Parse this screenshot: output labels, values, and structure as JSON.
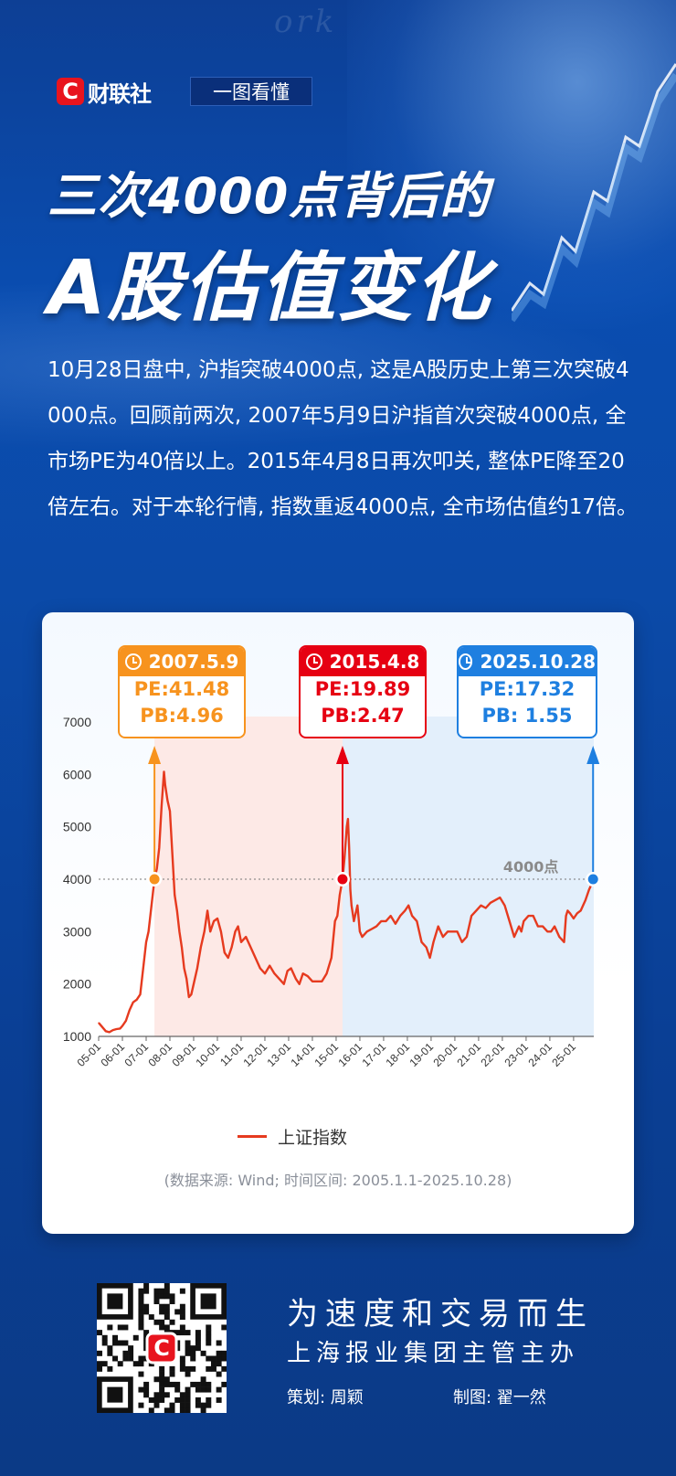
{
  "header": {
    "brand_letter": "C",
    "brand_name": "财联社",
    "tag": "一图看懂",
    "title_line1": "三次4000点背后的",
    "title_line2": "A股估值变化"
  },
  "intro": "10月28日盘中, 沪指突破4000点, 这是A股历史上第三次突破4000点。回顾前两次, 2007年5月9日沪指首次突破4000点, 全市场PE为40倍以上。2015年4月8日再次叩关, 整体PE降至20倍左右。对于本轮行情, 指数重返4000点, 全市场估值约17倍。",
  "callouts": [
    {
      "date": "2007.5.9",
      "pe": "PE:41.48",
      "pb": "PB:4.96",
      "color": "#f7931e"
    },
    {
      "date": "2015.4.8",
      "pe": "PE:19.89",
      "pb": "PB:2.47",
      "color": "#e60012"
    },
    {
      "date": "2025.10.28",
      "pe": "PE:17.32",
      "pb": "PB: 1.55",
      "color": "#1e7fe0"
    }
  ],
  "chart_data": {
    "type": "line",
    "title": "",
    "xlabel": "",
    "ylabel": "",
    "ylim": [
      1000,
      7000
    ],
    "yticks": [
      1000,
      2000,
      3000,
      4000,
      5000,
      6000,
      7000
    ],
    "xticks": [
      "05-01",
      "06-01",
      "07-01",
      "08-01",
      "09-01",
      "10-01",
      "11-01",
      "12-01",
      "13-01",
      "14-01",
      "15-01",
      "16-01",
      "17-01",
      "18-01",
      "19-01",
      "20-01",
      "21-01",
      "22-01",
      "23-01",
      "24-01",
      "25-01"
    ],
    "xlim": [
      2005.0,
      2025.85
    ],
    "reference_line": {
      "value": 4000,
      "label": "4000点"
    },
    "markers": [
      {
        "x": 2007.35,
        "y": 4000,
        "color": "#f7931e"
      },
      {
        "x": 2015.27,
        "y": 4000,
        "color": "#e60012"
      },
      {
        "x": 2025.82,
        "y": 4000,
        "color": "#1e7fe0"
      }
    ],
    "series": [
      {
        "name": "上证指数",
        "color": "#e63a1f",
        "x": [
          2005.0,
          2005.15,
          2005.3,
          2005.45,
          2005.6,
          2005.75,
          2005.9,
          2006.0,
          2006.15,
          2006.3,
          2006.45,
          2006.6,
          2006.75,
          2006.9,
          2007.0,
          2007.1,
          2007.2,
          2007.35,
          2007.45,
          2007.55,
          2007.65,
          2007.75,
          2007.8,
          2007.9,
          2008.0,
          2008.1,
          2008.2,
          2008.3,
          2008.4,
          2008.5,
          2008.6,
          2008.7,
          2008.8,
          2008.9,
          2009.0,
          2009.15,
          2009.3,
          2009.45,
          2009.58,
          2009.7,
          2009.85,
          2010.0,
          2010.15,
          2010.3,
          2010.45,
          2010.6,
          2010.75,
          2010.87,
          2011.0,
          2011.2,
          2011.4,
          2011.6,
          2011.8,
          2012.0,
          2012.2,
          2012.4,
          2012.6,
          2012.8,
          2012.95,
          2013.1,
          2013.3,
          2013.45,
          2013.6,
          2013.8,
          2014.0,
          2014.2,
          2014.4,
          2014.6,
          2014.8,
          2014.95,
          2015.05,
          2015.15,
          2015.27,
          2015.35,
          2015.45,
          2015.5,
          2015.55,
          2015.6,
          2015.65,
          2015.75,
          2015.9,
          2016.0,
          2016.1,
          2016.3,
          2016.5,
          2016.7,
          2016.9,
          2017.1,
          2017.3,
          2017.5,
          2017.7,
          2017.9,
          2018.05,
          2018.2,
          2018.4,
          2018.6,
          2018.8,
          2018.95,
          2019.1,
          2019.3,
          2019.5,
          2019.7,
          2019.9,
          2020.1,
          2020.3,
          2020.5,
          2020.7,
          2020.9,
          2021.1,
          2021.3,
          2021.5,
          2021.7,
          2021.9,
          2022.1,
          2022.3,
          2022.5,
          2022.7,
          2022.8,
          2022.9,
          2023.1,
          2023.3,
          2023.5,
          2023.7,
          2023.9,
          2024.05,
          2024.2,
          2024.4,
          2024.6,
          2024.68,
          2024.75,
          2024.85,
          2025.0,
          2025.15,
          2025.3,
          2025.5,
          2025.65,
          2025.75,
          2025.82
        ],
        "values": [
          1260,
          1180,
          1100,
          1080,
          1120,
          1140,
          1150,
          1200,
          1300,
          1500,
          1650,
          1700,
          1800,
          2400,
          2800,
          3000,
          3400,
          4000,
          4200,
          4600,
          5400,
          6050,
          5800,
          5500,
          5300,
          4500,
          3700,
          3400,
          3000,
          2700,
          2300,
          2100,
          1750,
          1800,
          2000,
          2300,
          2700,
          3000,
          3400,
          3000,
          3200,
          3250,
          3000,
          2600,
          2500,
          2700,
          3000,
          3100,
          2800,
          2900,
          2700,
          2500,
          2300,
          2200,
          2350,
          2200,
          2100,
          2000,
          2250,
          2300,
          2100,
          2000,
          2200,
          2150,
          2050,
          2050,
          2050,
          2200,
          2500,
          3200,
          3300,
          3700,
          4000,
          4400,
          5000,
          5150,
          4600,
          3800,
          3500,
          3200,
          3500,
          3000,
          2900,
          3000,
          3050,
          3100,
          3200,
          3200,
          3300,
          3150,
          3300,
          3400,
          3500,
          3300,
          3200,
          2800,
          2700,
          2500,
          2800,
          3100,
          2900,
          3000,
          3000,
          3000,
          2800,
          2900,
          3300,
          3400,
          3500,
          3450,
          3550,
          3600,
          3650,
          3500,
          3200,
          2900,
          3100,
          3000,
          3200,
          3300,
          3300,
          3100,
          3100,
          3000,
          3000,
          3100,
          2900,
          2800,
          3300,
          3400,
          3350,
          3250,
          3350,
          3400,
          3600,
          3800,
          3900,
          4000
        ]
      }
    ]
  },
  "legend_label": "上证指数",
  "source": "(数据来源: Wind; 时间区间: 2005.1.1-2025.10.28)",
  "footer": {
    "qr_badge": "C",
    "slogan1": "为速度和交易而生",
    "slogan2": "上海报业集团主管主办",
    "planner": "策划: 周颖",
    "designer": "制图: 翟一然"
  }
}
